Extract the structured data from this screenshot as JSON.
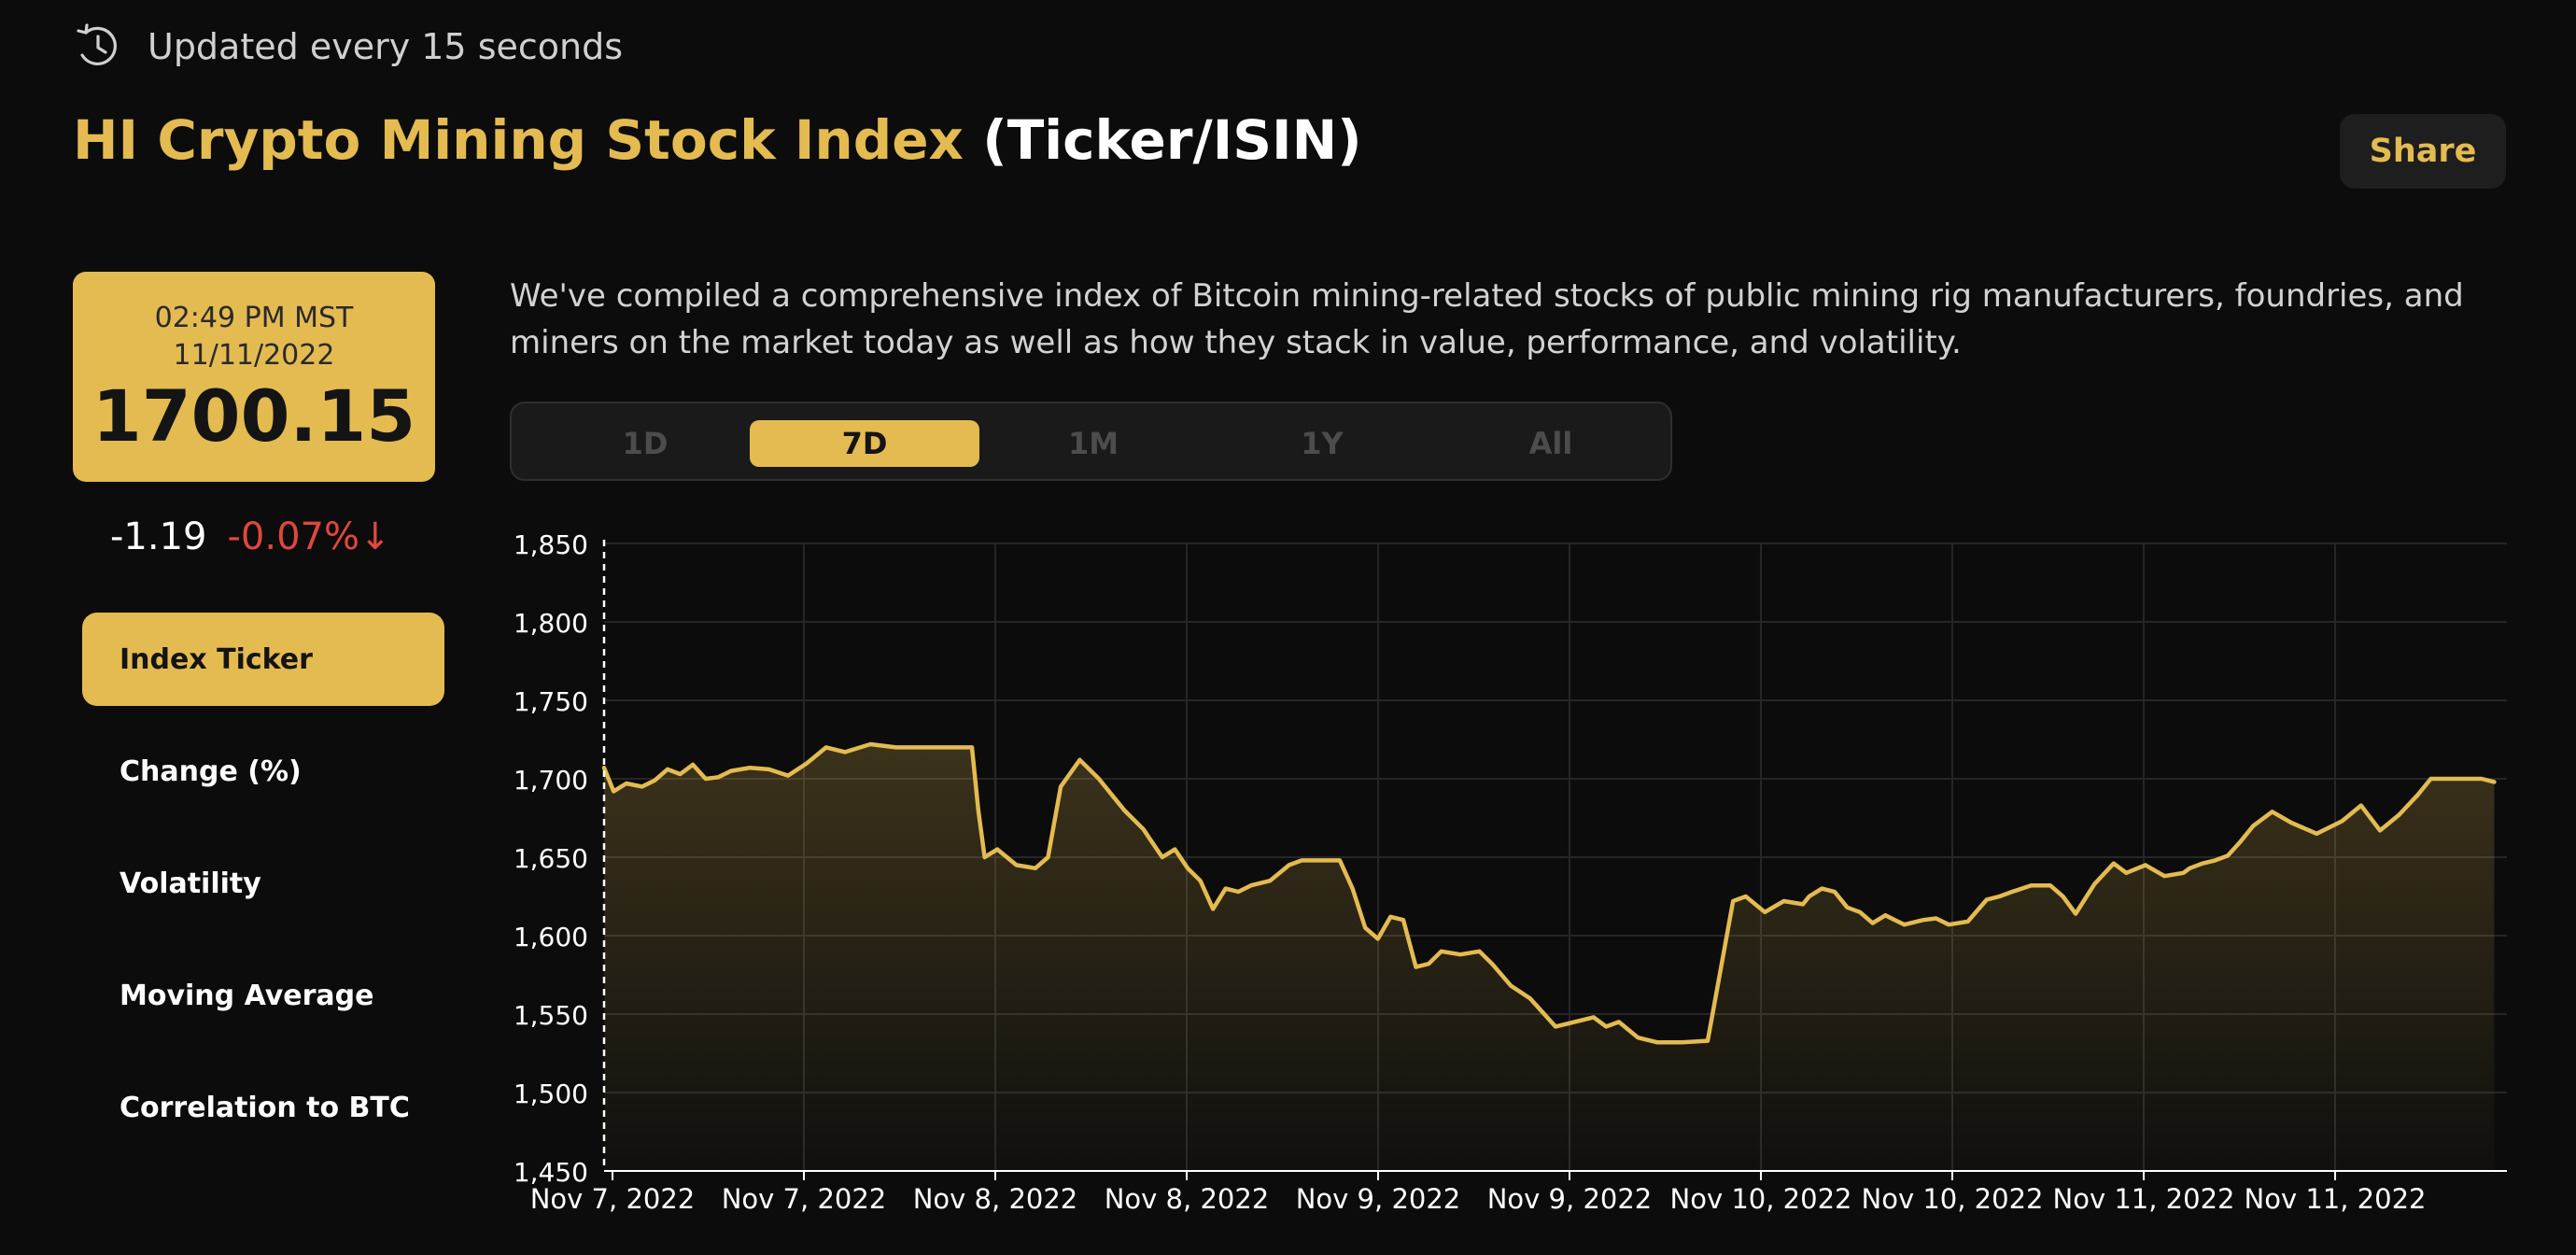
{
  "header": {
    "updated_text": "Updated every 15 seconds",
    "title_gold": "HI Crypto Mining Stock Index",
    "title_white": "(Ticker/ISIN)",
    "share_label": "Share"
  },
  "price": {
    "time": "02:49 PM MST",
    "date": "11/11/2022",
    "value": "1700.15",
    "change_abs": "-1.19",
    "change_pct": "-0.07%",
    "change_arrow": "↓"
  },
  "sidebar": {
    "items": [
      {
        "label": "Index Ticker"
      },
      {
        "label": "Change (%)"
      },
      {
        "label": "Volatility"
      },
      {
        "label": "Moving Average"
      },
      {
        "label": "Correlation to BTC"
      }
    ],
    "active_index": 0
  },
  "description": "We've compiled a comprehensive index of Bitcoin mining-related stocks of public mining rig manufacturers, foundries, and miners on the market today as well as how they stack in value, performance, and volatility.",
  "range_tabs": {
    "items": [
      {
        "label": "1D"
      },
      {
        "label": "7D"
      },
      {
        "label": "1M"
      },
      {
        "label": "1Y"
      },
      {
        "label": "All"
      }
    ],
    "active_index": 1
  },
  "colors": {
    "accent": "#e4bb51",
    "negative": "#e0473f",
    "background": "#0c0c0c"
  },
  "icons": {
    "refresh": "clock-refresh-icon",
    "down_arrow": "arrow-down-icon"
  },
  "chart_data": {
    "type": "area",
    "title": "",
    "xlabel": "",
    "ylabel": "",
    "ylim": [
      1450,
      1850
    ],
    "yticks": [
      1450,
      1500,
      1550,
      1600,
      1650,
      1700,
      1750,
      1800,
      1850
    ],
    "xlim": [
      0,
      30
    ],
    "xtick_labels": [
      "Nov 7, 2022",
      "Nov 7, 2022",
      "Nov 8, 2022",
      "Nov 8, 2022",
      "Nov 9, 2022",
      "Nov 9, 2022",
      "Nov 10, 2022",
      "Nov 10, 2022",
      "Nov 11, 2022",
      "Nov 11, 2022"
    ],
    "grid": true,
    "series": [
      {
        "color": "#e4bb51",
        "x": [
          0.0,
          0.15,
          0.35,
          0.6,
          0.8,
          1.0,
          1.2,
          1.4,
          1.6,
          1.8,
          2.0,
          2.3,
          2.6,
          2.9,
          3.2,
          3.5,
          3.8,
          4.2,
          4.6,
          5.0,
          5.4,
          5.8,
          5.9,
          6.0,
          6.2,
          6.5,
          6.8,
          7.0,
          7.2,
          7.5,
          7.8,
          8.0,
          8.2,
          8.5,
          8.8,
          9.0,
          9.2,
          9.4,
          9.6,
          9.8,
          10.0,
          10.2,
          10.5,
          10.8,
          11.0,
          11.3,
          11.6,
          11.8,
          12.0,
          12.2,
          12.4,
          12.6,
          12.8,
          13.0,
          13.2,
          13.5,
          13.8,
          14.0,
          14.3,
          14.6,
          15.0,
          15.3,
          15.6,
          15.8,
          16.0,
          16.3,
          16.6,
          17.0,
          17.4,
          17.8,
          18.0,
          18.3,
          18.6,
          18.9,
          19.0,
          19.2,
          19.4,
          19.6,
          19.8,
          20.0,
          20.2,
          20.5,
          20.8,
          21.0,
          21.2,
          21.5,
          21.8,
          22.0,
          22.2,
          22.5,
          22.8,
          23.0,
          23.2,
          23.5,
          23.8,
          24.0,
          24.3,
          24.6,
          24.9,
          25.0,
          25.2,
          25.4,
          25.6,
          25.8,
          26.0,
          26.3,
          26.6,
          27.0,
          27.4,
          27.7,
          28.0,
          28.3,
          28.6,
          28.8,
          29.0,
          29.2,
          29.4,
          29.6,
          29.8
        ],
        "values": [
          1707,
          1692,
          1697,
          1695,
          1699,
          1706,
          1703,
          1709,
          1700,
          1701,
          1705,
          1707,
          1706,
          1702,
          1710,
          1720,
          1717,
          1722,
          1720,
          1720,
          1720,
          1720,
          1680,
          1650,
          1655,
          1645,
          1643,
          1650,
          1695,
          1712,
          1700,
          1690,
          1680,
          1668,
          1650,
          1655,
          1643,
          1635,
          1617,
          1630,
          1628,
          1632,
          1635,
          1645,
          1648,
          1648,
          1648,
          1630,
          1605,
          1598,
          1612,
          1610,
          1580,
          1582,
          1590,
          1588,
          1590,
          1582,
          1568,
          1560,
          1542,
          1545,
          1548,
          1542,
          1545,
          1535,
          1532,
          1532,
          1533,
          1622,
          1625,
          1615,
          1622,
          1620,
          1625,
          1630,
          1628,
          1618,
          1615,
          1608,
          1613,
          1607,
          1610,
          1611,
          1607,
          1609,
          1623,
          1625,
          1628,
          1632,
          1632,
          1625,
          1614,
          1633,
          1646,
          1640,
          1645,
          1638,
          1640,
          1643,
          1646,
          1648,
          1651,
          1660,
          1670,
          1679,
          1672,
          1665,
          1673,
          1683,
          1667,
          1677,
          1690,
          1700,
          1700,
          1700,
          1700,
          1700,
          1698
        ]
      }
    ]
  }
}
